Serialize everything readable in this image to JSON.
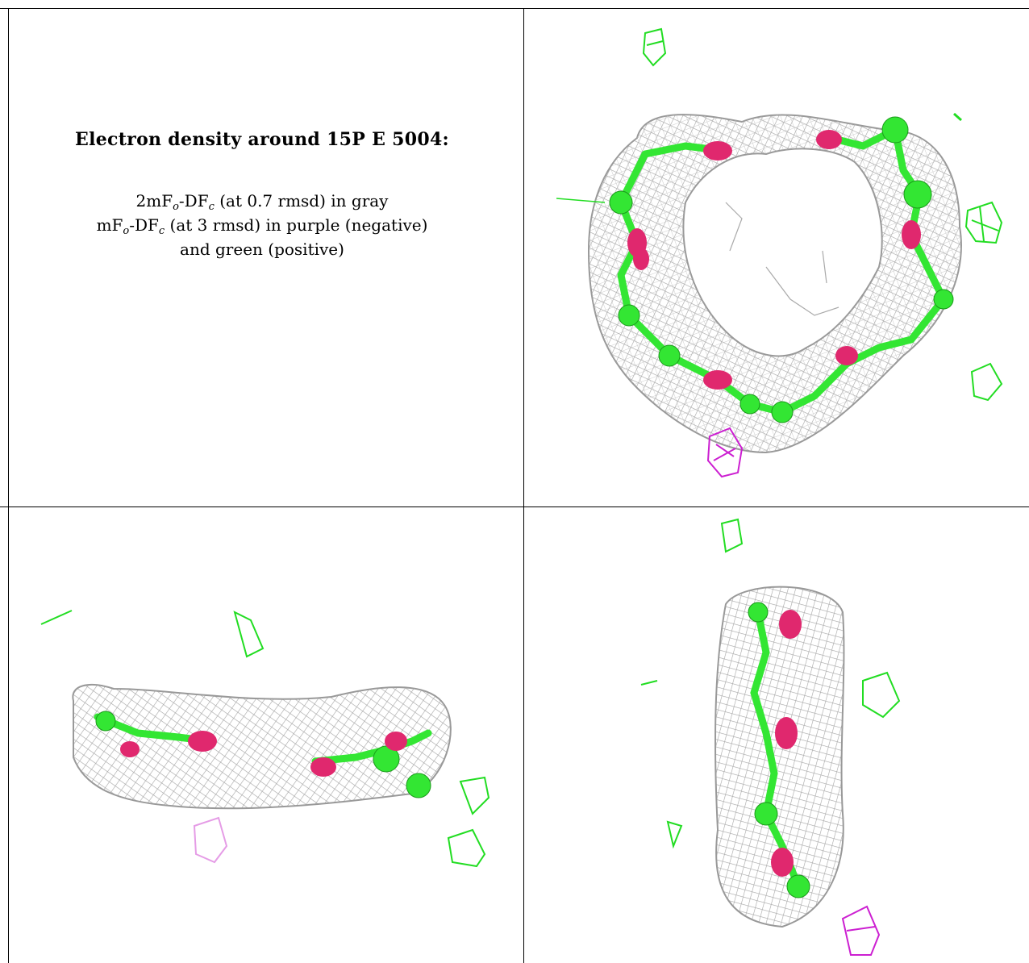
{
  "caption": {
    "title": "Electron density around 15P E 5004:",
    "line1": {
      "pre": "2mF",
      "sub1": "o",
      "mid": "-DF",
      "sub2": "c",
      "post": " (at 0.7 rmsd) in gray"
    },
    "line2": {
      "pre": "mF",
      "sub1": "o",
      "mid": "-DF",
      "sub2": "c",
      "post": " (at 3 rmsd) in purple (negative)"
    },
    "line3": "and green (positive)"
  },
  "colors": {
    "mesh_gray": "#a8a8a8",
    "carbon_green": "#33e633",
    "oxygen_red": "#e0286e",
    "negative_purple": "#cc1fd1",
    "positive_green": "#22dd22"
  },
  "panels": [
    {
      "name": "top-view"
    },
    {
      "name": "side-view"
    },
    {
      "name": "end-view"
    }
  ]
}
